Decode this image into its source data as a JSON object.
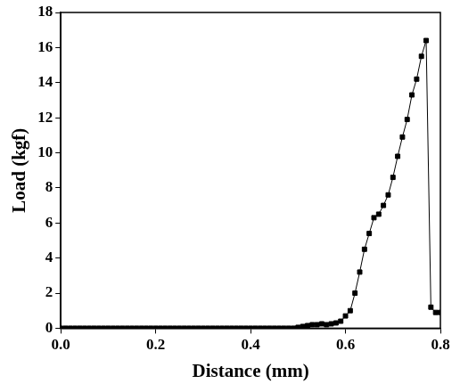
{
  "chart_data": {
    "type": "line",
    "x_label": "Distance (mm)",
    "y_label": "Load (kgf)",
    "x": [
      0.0,
      0.01,
      0.02,
      0.03,
      0.04,
      0.05,
      0.06,
      0.07,
      0.08,
      0.09,
      0.1,
      0.11,
      0.12,
      0.13,
      0.14,
      0.15,
      0.16,
      0.17,
      0.18,
      0.19,
      0.2,
      0.21,
      0.22,
      0.23,
      0.24,
      0.25,
      0.26,
      0.27,
      0.28,
      0.29,
      0.3,
      0.31,
      0.32,
      0.33,
      0.34,
      0.35,
      0.36,
      0.37,
      0.38,
      0.39,
      0.4,
      0.41,
      0.42,
      0.43,
      0.44,
      0.45,
      0.46,
      0.47,
      0.48,
      0.49,
      0.5,
      0.51,
      0.52,
      0.53,
      0.54,
      0.55,
      0.56,
      0.57,
      0.58,
      0.59,
      0.6,
      0.61,
      0.62,
      0.63,
      0.64,
      0.65,
      0.66,
      0.67,
      0.68,
      0.69,
      0.7,
      0.71,
      0.72,
      0.73,
      0.74,
      0.75,
      0.76,
      0.77,
      0.78,
      0.79,
      0.8
    ],
    "values": [
      0,
      0,
      0,
      0,
      0,
      0,
      0,
      0,
      0,
      0,
      0,
      0,
      0,
      0,
      0,
      0,
      0,
      0,
      0,
      0,
      0,
      0,
      0,
      0,
      0,
      0,
      0,
      0,
      0,
      0,
      0,
      0,
      0,
      0,
      0,
      0,
      0,
      0,
      0,
      0,
      0,
      0,
      0,
      0,
      0,
      0,
      0,
      0,
      0,
      0,
      0.05,
      0.1,
      0.15,
      0.2,
      0.2,
      0.25,
      0.2,
      0.25,
      0.3,
      0.4,
      0.7,
      1.0,
      2.0,
      3.2,
      4.5,
      5.4,
      6.3,
      6.5,
      7.0,
      7.6,
      8.6,
      9.8,
      10.9,
      11.9,
      13.3,
      14.2,
      15.5,
      16.4,
      1.2,
      0.9,
      0.9
    ],
    "color": "#000000",
    "marker": "square",
    "line_style": "solid",
    "xlim": [
      0,
      0.8
    ],
    "xticks": [
      {
        "value": 0,
        "label": "0.0"
      },
      0.2,
      0.4,
      0.6,
      0.8
    ],
    "ylim": [
      0,
      18
    ],
    "yticks": [
      0,
      2,
      4,
      6,
      8,
      10,
      12,
      14,
      16,
      18
    ],
    "grid": false
  }
}
